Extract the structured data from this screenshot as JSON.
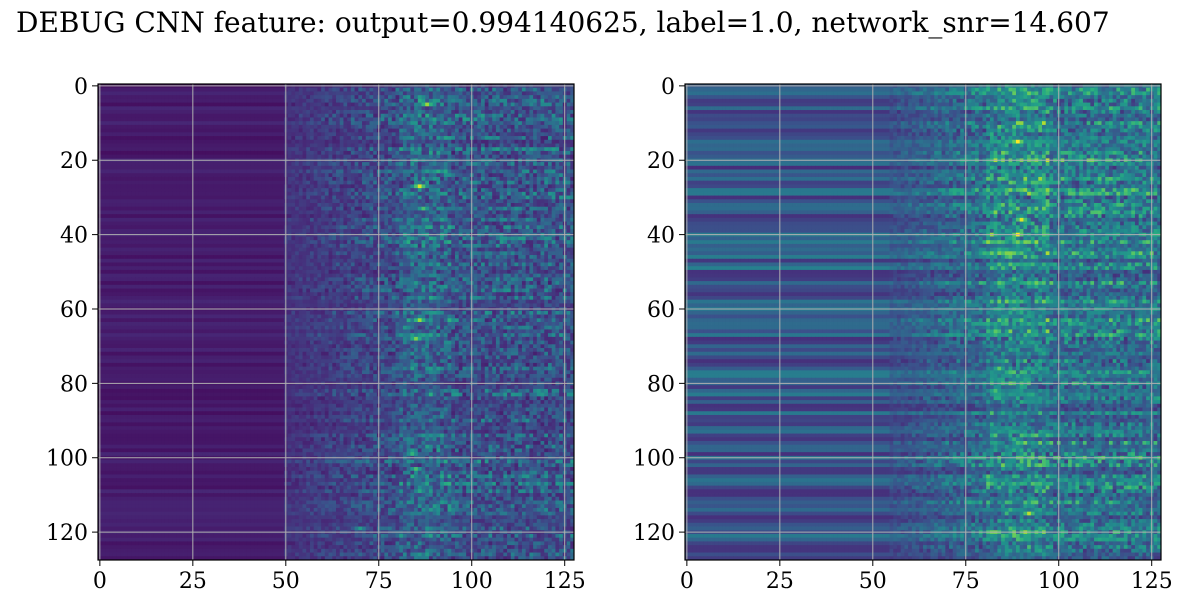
{
  "title": "DEBUG CNN feature: output=0.994140625, label=1.0, network_snr=14.607",
  "chart_data": [
    {
      "type": "heatmap",
      "panel": "left",
      "rows": 128,
      "cols": 128,
      "xlim": [
        0,
        127
      ],
      "ylim": [
        127,
        0
      ],
      "xticks": [
        0,
        25,
        50,
        75,
        100,
        125
      ],
      "yticks": [
        0,
        20,
        40,
        60,
        80,
        100,
        120
      ],
      "grid": true,
      "colormap": "viridis",
      "hotspots": [
        {
          "x": 86,
          "y": 27,
          "v": 0.95
        },
        {
          "x": 88,
          "y": 5,
          "v": 0.85
        },
        {
          "x": 87,
          "y": 33,
          "v": 0.7
        },
        {
          "x": 86,
          "y": 63,
          "v": 0.85
        },
        {
          "x": 85,
          "y": 68,
          "v": 0.8
        },
        {
          "x": 84,
          "y": 99,
          "v": 0.65
        },
        {
          "x": 85,
          "y": 103,
          "v": 0.7
        },
        {
          "x": 86,
          "y": 109,
          "v": 0.6
        },
        {
          "x": 70,
          "y": 119,
          "v": 0.55
        },
        {
          "x": 89,
          "y": 48,
          "v": 0.5
        }
      ]
    },
    {
      "type": "heatmap",
      "panel": "right",
      "rows": 128,
      "cols": 128,
      "xlim": [
        0,
        127
      ],
      "ylim": [
        127,
        0
      ],
      "xticks": [
        0,
        25,
        50,
        75,
        100,
        125
      ],
      "yticks": [
        0,
        20,
        40,
        60,
        80,
        100,
        120
      ],
      "grid": true,
      "colormap": "viridis",
      "hotspots": [
        {
          "x": 89,
          "y": 15,
          "v": 1.0
        },
        {
          "x": 90,
          "y": 36,
          "v": 0.95
        },
        {
          "x": 89,
          "y": 40,
          "v": 1.0
        },
        {
          "x": 82,
          "y": 40,
          "v": 0.85
        },
        {
          "x": 88,
          "y": 52,
          "v": 0.7
        },
        {
          "x": 84,
          "y": 76,
          "v": 0.75
        },
        {
          "x": 83,
          "y": 82,
          "v": 0.7
        },
        {
          "x": 88,
          "y": 95,
          "v": 0.65
        },
        {
          "x": 90,
          "y": 103,
          "v": 0.6
        },
        {
          "x": 92,
          "y": 115,
          "v": 0.9
        },
        {
          "x": 113,
          "y": 18,
          "v": 0.55
        },
        {
          "x": 109,
          "y": 65,
          "v": 0.5
        }
      ]
    }
  ]
}
